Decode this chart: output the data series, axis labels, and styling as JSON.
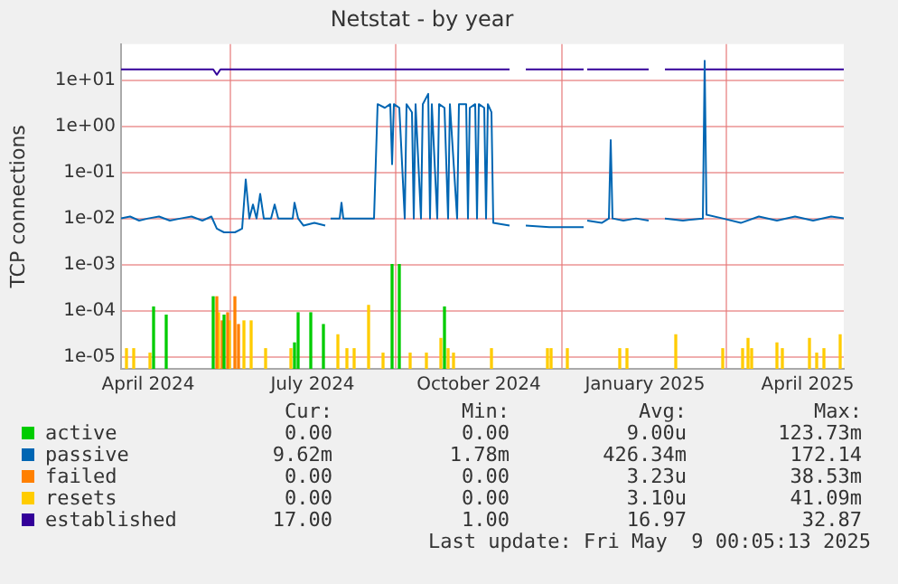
{
  "chart_data": {
    "type": "line",
    "title": "Netstat - by year",
    "ylabel": "TCP connections",
    "log": "y",
    "grid": true,
    "legend": "bottom",
    "marker": "none",
    "line_style": "solid",
    "xlim": [
      "2024-03-17",
      "2025-04-21"
    ],
    "xticks": [
      {
        "value": "2024-04-01",
        "label": "April 2024"
      },
      {
        "value": "2024-07-01",
        "label": "July 2024"
      },
      {
        "value": "2024-10-01",
        "label": "October 2024"
      },
      {
        "value": "2025-01-01",
        "label": "January 2025"
      },
      {
        "value": "2025-04-01",
        "label": "April 2025"
      }
    ],
    "ylim": [
      5.5e-06,
      60
    ],
    "yticks": [
      {
        "value": 1e-05,
        "label": "1e-05"
      },
      {
        "value": 0.0001,
        "label": "1e-04"
      },
      {
        "value": 0.001,
        "label": "1e-03"
      },
      {
        "value": 0.01,
        "label": "1e-02"
      },
      {
        "value": 0.1,
        "label": "1e-01"
      },
      {
        "value": 1,
        "label": "1e+00"
      },
      {
        "value": 10,
        "label": "1e+01"
      }
    ],
    "series": [
      {
        "name": "active",
        "type": "bar",
        "color": "#00cc00",
        "x": [
          "2024-04-04",
          "2024-04-11",
          "2024-05-07",
          "2024-05-13",
          "2024-06-21",
          "2024-06-23",
          "2024-06-30",
          "2024-07-07",
          "2024-08-14",
          "2024-08-18",
          "2024-09-12"
        ],
        "values": [
          0.00012,
          8e-05,
          0.0002,
          8e-05,
          2e-05,
          9e-05,
          9e-05,
          5e-05,
          0.001,
          0.001,
          0.00012
        ]
      },
      {
        "name": "passive",
        "color": "#0066b3",
        "x": [
          "2024-03-17",
          "2024-03-22",
          "2024-03-27",
          "2024-04-01",
          "2024-04-07",
          "2024-04-13",
          "2024-04-19",
          "2024-04-25",
          "2024-05-01",
          "2024-05-06",
          "2024-05-09",
          "2024-05-13",
          "2024-05-19",
          "2024-05-23",
          "2024-05-25",
          "2024-05-27",
          "2024-05-29",
          "2024-05-31",
          "2024-06-02",
          "2024-06-04",
          "2024-06-08",
          "2024-06-10",
          "2024-06-12",
          "2024-06-20",
          "2024-06-21",
          "2024-06-23",
          "2024-06-26",
          "2024-07-02",
          "2024-07-08",
          "2024-07-09",
          "2024-07-11",
          "2024-07-16",
          "2024-07-17",
          "2024-07-18",
          "2024-08-04",
          "2024-08-06",
          "2024-08-10",
          "2024-08-13",
          "2024-08-14",
          "2024-08-15",
          "2024-08-18",
          "2024-08-21",
          "2024-08-22",
          "2024-08-25",
          "2024-08-26",
          "2024-08-27",
          "2024-08-30",
          "2024-08-31",
          "2024-09-03",
          "2024-09-04",
          "2024-09-05",
          "2024-09-08",
          "2024-09-09",
          "2024-09-12",
          "2024-09-14",
          "2024-09-15",
          "2024-09-19",
          "2024-09-20",
          "2024-09-24",
          "2024-09-25",
          "2024-09-26",
          "2024-09-29",
          "2024-09-30",
          "2024-10-01",
          "2024-10-04",
          "2024-10-05",
          "2024-10-06",
          "2024-10-08",
          "2024-10-09",
          "2024-10-18",
          "2024-10-19",
          "2024-10-27",
          "2024-11-09",
          "2024-11-28",
          "2024-11-29",
          "2024-11-30",
          "2024-12-08",
          "2024-12-12",
          "2024-12-13",
          "2024-12-14",
          "2024-12-20",
          "2024-12-27",
          "2025-01-03",
          "2025-01-04",
          "2025-01-12",
          "2025-01-22",
          "2025-02-02",
          "2025-02-03",
          "2025-02-04",
          "2025-02-13",
          "2025-02-23",
          "2025-03-05",
          "2025-03-15",
          "2025-03-25",
          "2025-04-04",
          "2025-04-14",
          "2025-04-21"
        ],
        "values": [
          0.01,
          0.011,
          0.009,
          0.01,
          0.011,
          0.009,
          0.01,
          0.011,
          0.009,
          0.011,
          0.006,
          0.005,
          0.005,
          0.006,
          0.07,
          0.01,
          0.02,
          0.01,
          0.034,
          0.01,
          0.01,
          0.02,
          0.01,
          0.01,
          0.022,
          0.01,
          0.007,
          0.008,
          0.007,
          null,
          0.01,
          0.01,
          0.022,
          0.01,
          0.01,
          3,
          2.5,
          3,
          0.15,
          3,
          2.5,
          0.01,
          3,
          2,
          0.01,
          3,
          0.01,
          3,
          5,
          0.01,
          3,
          0.01,
          3,
          2.5,
          0.01,
          3,
          0.01,
          3,
          3,
          0.01,
          2.5,
          3,
          0.01,
          3,
          2.5,
          0.01,
          3,
          2,
          0.008,
          0.007,
          null,
          0.007,
          0.0065,
          0.0065,
          null,
          0.009,
          0.008,
          0.01,
          0.5,
          0.01,
          0.009,
          0.01,
          0.009,
          null,
          0.01,
          0.009,
          0.01,
          26,
          0.012,
          0.01,
          0.008,
          0.011,
          0.009,
          0.011,
          0.009,
          0.011,
          0.01
        ]
      },
      {
        "name": "failed",
        "type": "bar",
        "color": "#ff8000",
        "x": [
          "2024-05-09",
          "2024-05-12",
          "2024-05-15",
          "2024-05-19",
          "2024-05-21"
        ],
        "values": [
          0.0002,
          6e-05,
          9e-05,
          0.0002,
          5e-05
        ]
      },
      {
        "name": "resets",
        "type": "bar",
        "color": "#ffcc00",
        "x": [
          "2024-03-20",
          "2024-03-24",
          "2024-04-02",
          "2024-05-10",
          "2024-05-16",
          "2024-05-24",
          "2024-05-28",
          "2024-06-05",
          "2024-06-19",
          "2024-07-15",
          "2024-07-20",
          "2024-07-24",
          "2024-08-01",
          "2024-08-09",
          "2024-08-24",
          "2024-09-02",
          "2024-09-10",
          "2024-09-14",
          "2024-09-17",
          "2024-10-08",
          "2024-11-08",
          "2024-11-10",
          "2024-11-19",
          "2024-12-18",
          "2024-12-22",
          "2025-01-18",
          "2025-02-13",
          "2025-02-24",
          "2025-02-27",
          "2025-03-01",
          "2025-03-15",
          "2025-03-18",
          "2025-04-02",
          "2025-04-06",
          "2025-04-10",
          "2025-04-19"
        ],
        "values": [
          1.5e-05,
          1.5e-05,
          1.2e-05,
          9e-05,
          6e-05,
          6e-05,
          6e-05,
          1.5e-05,
          1.5e-05,
          3e-05,
          1.5e-05,
          1.5e-05,
          0.00013,
          1.2e-05,
          1.2e-05,
          1.2e-05,
          2.5e-05,
          1.5e-05,
          1.2e-05,
          1.5e-05,
          1.5e-05,
          1.5e-05,
          1.5e-05,
          1.5e-05,
          1.5e-05,
          3e-05,
          1.5e-05,
          1.5e-05,
          2.5e-05,
          1.5e-05,
          2e-05,
          1.5e-05,
          2.5e-05,
          1.2e-05,
          1.5e-05,
          3e-05
        ]
      },
      {
        "name": "established",
        "color": "#330099",
        "x": [
          "2024-03-17",
          "2024-05-07",
          "2024-05-09",
          "2024-05-11",
          "2024-06-26",
          "2024-07-09",
          "2024-10-18",
          "2024-10-19",
          "2024-10-27",
          "2024-11-28",
          "2024-11-29",
          "2024-11-30",
          "2025-01-03",
          "2025-01-04",
          "2025-01-12",
          "2025-04-21"
        ],
        "values": [
          17,
          17,
          13,
          17,
          17,
          17,
          17,
          null,
          17,
          17,
          null,
          17,
          17,
          null,
          17,
          17
        ]
      }
    ],
    "annotations": [
      "Cur:",
      "Min:",
      "Avg:",
      "Max:",
      "0.00",
      "0.00",
      "9.00u",
      "123.73m",
      "9.62m",
      "1.78m",
      "426.34m",
      "172.14",
      "0.00",
      "0.00",
      "3.23u",
      "38.53m",
      "0.00",
      "0.00",
      "3.10u",
      "41.09m",
      "17.00",
      "1.00",
      "16.97",
      "32.87",
      "Last update: Fri May  9 00:05:13 2025"
    ]
  }
}
